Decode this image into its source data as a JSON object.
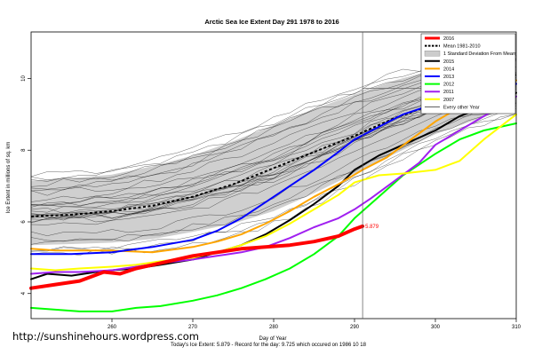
{
  "chart_data": {
    "type": "line",
    "title": "Arctic Sea Ice Extent Day 291 1978 to 2016",
    "xlabel": "Day of Year",
    "ylabel": "Ice Extent in millions of sq. km",
    "footer": "Today's Ice Extent: 5.879  -  Record for the day: 9.725 which occured on 1986 10 18",
    "xlim": [
      250,
      310
    ],
    "ylim": [
      3.3,
      11.3
    ],
    "xticks": [
      260,
      270,
      280,
      290,
      300,
      310
    ],
    "yticks": [
      4,
      6,
      8,
      10
    ],
    "current_day": 291,
    "current_value": 5.879,
    "current_value_label": "5.879",
    "grid": false,
    "legend_position": "top-right",
    "legend": [
      {
        "label": "2016",
        "color": "#ff0000",
        "style": "line-thick"
      },
      {
        "label": "Mean 1981-2010",
        "color": "#000000",
        "style": "dashed"
      },
      {
        "label": "1 Standard Deviation From Mean",
        "color": "#cccccc",
        "style": "box"
      },
      {
        "label": "2015",
        "color": "#000000",
        "style": "line"
      },
      {
        "label": "2014",
        "color": "#ffa500",
        "style": "line"
      },
      {
        "label": "2013",
        "color": "#0000ff",
        "style": "line"
      },
      {
        "label": "2012",
        "color": "#00ff00",
        "style": "line"
      },
      {
        "label": "2011",
        "color": "#a020f0",
        "style": "line"
      },
      {
        "label": "2007",
        "color": "#ffff00",
        "style": "line"
      },
      {
        "label": "Every other Year",
        "color": "#000000",
        "style": "thin"
      }
    ],
    "band": {
      "x": [
        250,
        255,
        260,
        265,
        270,
        275,
        280,
        285,
        290,
        295,
        300,
        305,
        310
      ],
      "upper": [
        7.15,
        7.22,
        7.32,
        7.55,
        7.85,
        8.25,
        8.7,
        9.15,
        9.55,
        9.95,
        10.25,
        10.45,
        10.65
      ],
      "lower": [
        5.35,
        5.38,
        5.42,
        5.52,
        5.72,
        5.95,
        6.3,
        6.8,
        7.35,
        7.9,
        8.45,
        8.85,
        9.2
      ]
    },
    "mean": {
      "x": [
        250,
        255,
        260,
        265,
        270,
        275,
        280,
        285,
        290,
        295,
        300,
        305,
        310
      ],
      "values": [
        6.15,
        6.2,
        6.3,
        6.45,
        6.7,
        7.05,
        7.5,
        7.95,
        8.4,
        8.9,
        9.3,
        9.75,
        10.1
      ]
    },
    "series": [
      {
        "name": "2015",
        "color": "#000000",
        "width": 2,
        "x": [
          250,
          252,
          255,
          258,
          260,
          263,
          266,
          270,
          273,
          276,
          279,
          282,
          285,
          288,
          290,
          293,
          296,
          300,
          303,
          306,
          310
        ],
        "values": [
          4.4,
          4.55,
          4.5,
          4.6,
          4.65,
          4.7,
          4.8,
          4.95,
          5.15,
          5.35,
          5.65,
          6.05,
          6.5,
          7.0,
          7.45,
          7.85,
          8.15,
          8.55,
          8.95,
          9.2,
          9.6
        ]
      },
      {
        "name": "2014",
        "color": "#ffa500",
        "width": 2,
        "x": [
          250,
          253,
          256,
          260,
          265,
          270,
          273,
          276,
          279,
          282,
          285,
          288,
          291,
          294,
          297,
          300,
          303,
          306,
          310
        ],
        "values": [
          5.25,
          5.2,
          5.2,
          5.2,
          5.15,
          5.3,
          5.45,
          5.65,
          5.95,
          6.3,
          6.7,
          7.05,
          7.45,
          7.8,
          8.3,
          8.8,
          9.2,
          9.6,
          9.95
        ]
      },
      {
        "name": "2013",
        "color": "#0000ff",
        "width": 2,
        "x": [
          250,
          255,
          260,
          265,
          270,
          273,
          276,
          279,
          282,
          285,
          288,
          290,
          293,
          296,
          300,
          303,
          306,
          310
        ],
        "values": [
          5.1,
          5.1,
          5.15,
          5.3,
          5.5,
          5.75,
          6.1,
          6.55,
          7.0,
          7.45,
          7.95,
          8.3,
          8.65,
          9.0,
          9.3,
          9.55,
          9.75,
          9.85
        ]
      },
      {
        "name": "2012",
        "color": "#00ff00",
        "width": 2,
        "x": [
          250,
          253,
          256,
          260,
          263,
          266,
          270,
          273,
          276,
          279,
          282,
          285,
          288,
          290,
          293,
          296,
          300,
          303,
          306,
          310
        ],
        "values": [
          3.6,
          3.55,
          3.5,
          3.5,
          3.6,
          3.65,
          3.8,
          3.95,
          4.15,
          4.4,
          4.7,
          5.1,
          5.6,
          6.1,
          6.7,
          7.3,
          7.9,
          8.3,
          8.55,
          8.75
        ]
      },
      {
        "name": "2011",
        "color": "#a020f0",
        "width": 2,
        "x": [
          250,
          253,
          256,
          260,
          263,
          266,
          270,
          273,
          276,
          279,
          282,
          285,
          288,
          290,
          292,
          295,
          298,
          300,
          303,
          306,
          310
        ],
        "values": [
          4.55,
          4.6,
          4.6,
          4.65,
          4.75,
          4.85,
          4.95,
          5.05,
          5.15,
          5.3,
          5.55,
          5.85,
          6.1,
          6.35,
          6.65,
          7.15,
          7.65,
          8.15,
          8.55,
          8.95,
          9.5
        ]
      },
      {
        "name": "2007",
        "color": "#ffff00",
        "width": 2,
        "x": [
          250,
          253,
          256,
          260,
          263,
          266,
          270,
          273,
          276,
          279,
          282,
          285,
          288,
          290,
          293,
          296,
          300,
          303,
          306,
          310
        ],
        "values": [
          4.7,
          4.65,
          4.7,
          4.75,
          4.8,
          4.9,
          5.0,
          5.15,
          5.35,
          5.6,
          5.95,
          6.35,
          6.75,
          7.1,
          7.3,
          7.35,
          7.45,
          7.7,
          8.3,
          9.0
        ]
      },
      {
        "name": "2016",
        "color": "#ff0000",
        "width": 4,
        "x": [
          250,
          253,
          256,
          259,
          261,
          263,
          266,
          270,
          273,
          276,
          279,
          282,
          285,
          288,
          290,
          291
        ],
        "values": [
          4.15,
          4.25,
          4.35,
          4.6,
          4.55,
          4.7,
          4.85,
          5.05,
          5.15,
          5.25,
          5.3,
          5.35,
          5.45,
          5.6,
          5.8,
          5.879
        ]
      }
    ]
  },
  "site_url": "http://sunshinehours.wordpress.com"
}
